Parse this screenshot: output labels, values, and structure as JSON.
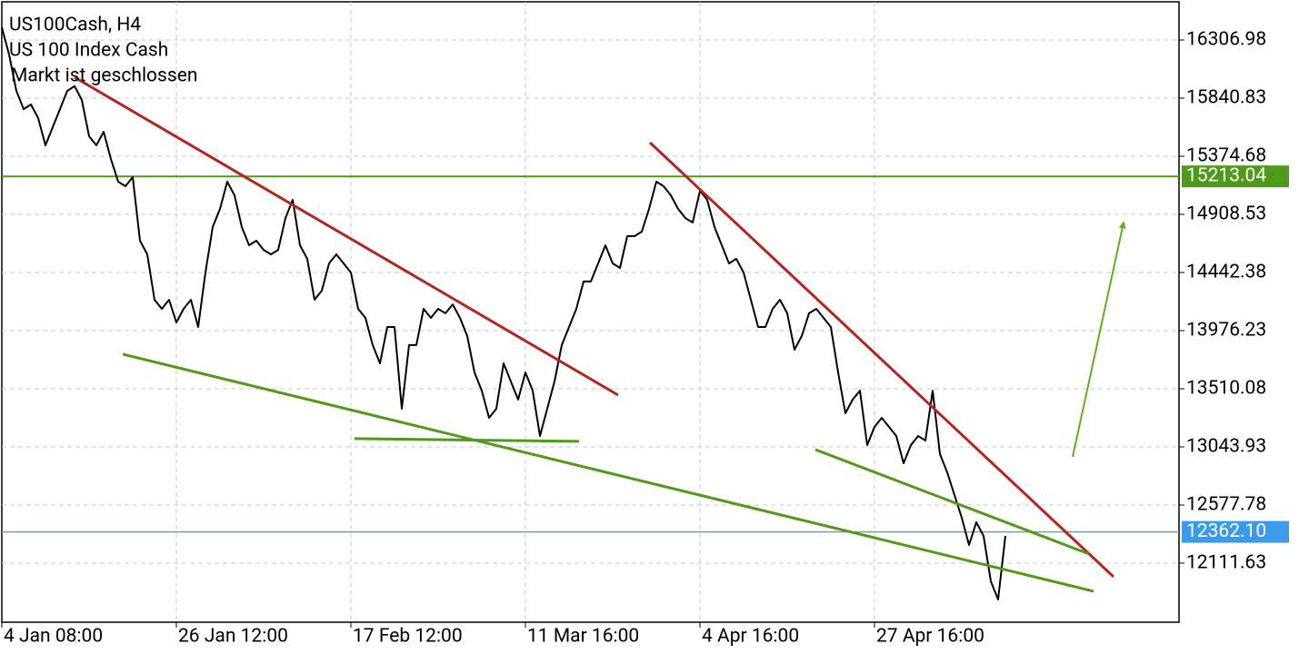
{
  "chart_data": {
    "type": "line",
    "title": "US100Cash, H4",
    "subtitle": "US 100 Index Cash",
    "status": "Markt ist geschlossen",
    "color": "#000000",
    "xlim": [
      0,
      647.5
    ],
    "ylim": [
      11638,
      16613
    ],
    "grid": true,
    "xticks": [
      {
        "value": 0,
        "label": "4 Jan 08:00"
      },
      {
        "value": 96,
        "label": "26 Jan 12:00"
      },
      {
        "value": 192,
        "label": "17 Feb 12:00"
      },
      {
        "value": 288,
        "label": "11 Mar 16:00"
      },
      {
        "value": 384,
        "label": "4 Apr 16:00"
      },
      {
        "value": 480,
        "label": "27 Apr 16:00"
      }
    ],
    "yticks": [
      16306.98,
      15840.83,
      15374.68,
      14908.53,
      14442.38,
      13976.23,
      13510.08,
      13043.93,
      12577.78,
      12111.63
    ],
    "x": [
      0,
      4,
      8,
      12,
      16,
      20,
      24,
      28,
      32,
      36,
      40,
      44,
      48,
      52,
      56,
      60,
      64,
      68,
      72,
      76,
      80,
      84,
      88,
      92,
      96,
      100,
      104,
      108,
      112,
      116,
      120,
      124,
      128,
      132,
      136,
      140,
      144,
      148,
      152,
      156,
      160,
      164,
      168,
      172,
      176,
      180,
      184,
      188,
      192,
      196,
      200,
      204,
      208,
      212,
      216,
      220,
      224,
      228,
      232,
      236,
      240,
      244,
      248,
      252,
      256,
      260,
      264,
      268,
      272,
      276,
      280,
      284,
      288,
      292,
      296,
      300,
      304,
      308,
      312,
      316,
      320,
      324,
      328,
      332,
      336,
      340,
      344,
      348,
      352,
      356,
      360,
      364,
      368,
      372,
      376,
      380,
      384,
      388,
      392,
      396,
      400,
      404,
      408,
      412,
      416,
      420,
      424,
      428,
      432,
      436,
      440,
      444,
      448,
      452,
      456,
      460,
      464,
      468,
      472,
      476,
      480,
      484,
      488,
      492,
      496,
      500,
      504,
      508,
      512,
      516,
      520,
      524,
      528,
      532,
      536,
      540,
      544,
      548,
      552
    ],
    "values": [
      16409,
      16190,
      15899,
      15753,
      15790,
      15681,
      15462,
      15608,
      15753,
      15899,
      15936,
      15826,
      15535,
      15462,
      15571,
      15353,
      15171,
      15134,
      15207,
      14697,
      14588,
      14224,
      14151,
      14224,
      14042,
      14151,
      14224,
      14005,
      14442,
      14807,
      14952,
      15171,
      15061,
      14807,
      14661,
      14697,
      14624,
      14588,
      14624,
      14879,
      15025,
      14661,
      14552,
      14224,
      14297,
      14515,
      14588,
      14515,
      14442,
      14151,
      14078,
      13860,
      13714,
      14005,
      14005,
      13350,
      13860,
      13860,
      14151,
      14078,
      14151,
      14115,
      14187,
      14078,
      13933,
      13641,
      13495,
      13277,
      13350,
      13714,
      13568,
      13423,
      13641,
      13495,
      13131,
      13350,
      13568,
      13860,
      14005,
      14151,
      14370,
      14370,
      14515,
      14661,
      14515,
      14479,
      14734,
      14734,
      14770,
      14952,
      15171,
      15134,
      15061,
      14952,
      14879,
      14843,
      15098,
      15025,
      14807,
      14661,
      14515,
      14552,
      14442,
      14224,
      14005,
      14005,
      14151,
      14224,
      14115,
      13823,
      13933,
      14115,
      14151,
      14078,
      14005,
      13641,
      13313,
      13423,
      13495,
      13058,
      13204,
      13277,
      13204,
      13131,
      12913,
      13058,
      13131,
      13095,
      13495,
      12986,
      12840,
      12658,
      12476,
      12257,
      12439,
      12330,
      11966,
      11820,
      12330
    ],
    "levels": [
      {
        "value": 15213.04,
        "color": "#4f9a1a"
      },
      {
        "value": {
          "value": 12362.1,
          "label": "12362.10"
        },
        "color": "#3c9be8"
      }
    ],
    "trendlines": [
      {
        "color": "#b3261e",
        "x": [
          40,
          339
        ],
        "y": [
          16008,
          13459
        ]
      },
      {
        "color": "#b3261e",
        "x": [
          356.5,
          611.5
        ],
        "y": [
          15484,
          12002
        ]
      },
      {
        "color": "#4f9a1a",
        "x": [
          66.5,
          600.5
        ],
        "y": [
          13787,
          11886
        ]
      },
      {
        "color": "#4f9a1a",
        "x": [
          194,
          317.5
        ],
        "y": [
          13110,
          13088
        ]
      },
      {
        "color": "#4f9a1a",
        "x": [
          447.5,
          598
        ],
        "y": [
          13022,
          12185
        ]
      }
    ],
    "arrow": {
      "color": "#5cb21e",
      "x": [
        589,
        617
      ],
      "y": [
        12964,
        14843
      ]
    }
  }
}
